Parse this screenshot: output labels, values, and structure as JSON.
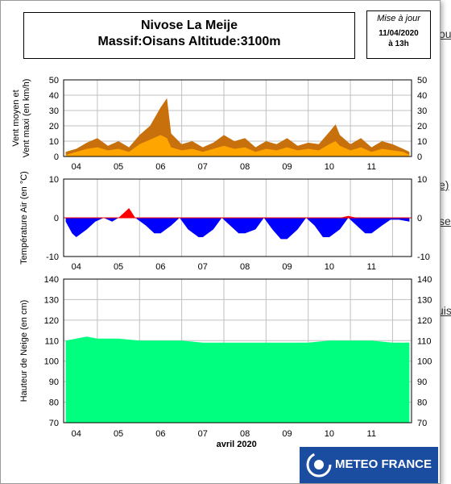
{
  "background_page": {
    "top_snippet": "... ... ...",
    "link_fragments": [
      "ou",
      "e)",
      "se",
      "uis"
    ]
  },
  "header": {
    "title_line1": "Nivose La Meije",
    "title_line2": "Massif:Oisans Altitude:3100m",
    "update_label": "Mise à jour",
    "update_date": "11/04/2020",
    "update_time": "à 13h"
  },
  "logo": {
    "text": "METEO FRANCE",
    "icon": "meteo-france-logo-icon"
  },
  "colors": {
    "wind_max": "#c8700c",
    "wind_mean": "#ffa500",
    "temp_above": "#ff0000",
    "temp_below": "#0000ff",
    "snow": "#00ff7f",
    "logo_bg": "#1a4ca0"
  },
  "chart_data": [
    {
      "type": "area",
      "ylabel": "Vent moyen et Vent maxi (en km/h)",
      "ylim": [
        0,
        50
      ],
      "yticks": [
        0,
        10,
        20,
        30,
        40,
        50
      ],
      "xticks": [
        "04",
        "05",
        "06",
        "07",
        "08",
        "09",
        "10",
        "11"
      ],
      "grid": true,
      "x_days": [
        3.25,
        3.5,
        3.75,
        4.0,
        4.25,
        4.5,
        4.75,
        5.0,
        5.25,
        5.5,
        5.65,
        5.75,
        6.0,
        6.25,
        6.5,
        6.75,
        7.0,
        7.25,
        7.5,
        7.75,
        8.0,
        8.25,
        8.5,
        8.75,
        9.0,
        9.25,
        9.5,
        9.65,
        9.75,
        10.0,
        10.25,
        10.5,
        10.75,
        11.0,
        11.25,
        11.4
      ],
      "series": [
        {
          "name": "Vent maxi",
          "values": [
            3,
            5,
            9,
            12,
            7,
            10,
            6,
            14,
            20,
            32,
            38,
            15,
            8,
            10,
            6,
            9,
            14,
            10,
            12,
            6,
            10,
            8,
            12,
            7,
            9,
            8,
            16,
            21,
            14,
            8,
            12,
            6,
            10,
            8,
            5,
            3
          ]
        },
        {
          "name": "Vent moyen",
          "values": [
            1,
            3,
            5,
            6,
            4,
            5,
            3,
            8,
            11,
            14,
            12,
            6,
            4,
            5,
            3,
            5,
            7,
            5,
            6,
            3,
            5,
            4,
            6,
            4,
            5,
            4,
            8,
            10,
            7,
            4,
            6,
            3,
            5,
            4,
            3,
            1
          ]
        }
      ]
    },
    {
      "type": "area",
      "ylabel": "Température Air (en °C)",
      "ylim": [
        -10,
        10
      ],
      "yticks": [
        -10,
        0,
        10
      ],
      "xticks": [
        "04",
        "05",
        "06",
        "07",
        "08",
        "09",
        "10",
        "11"
      ],
      "grid": true,
      "x_days": [
        3.25,
        3.4,
        3.5,
        3.75,
        3.95,
        4.15,
        4.35,
        4.5,
        4.75,
        4.9,
        5.15,
        5.35,
        5.5,
        5.75,
        5.95,
        6.15,
        6.4,
        6.5,
        6.75,
        6.95,
        7.15,
        7.35,
        7.5,
        7.75,
        7.95,
        8.15,
        8.35,
        8.5,
        8.75,
        8.95,
        9.15,
        9.35,
        9.5,
        9.75,
        9.95,
        10.15,
        10.35,
        10.5,
        10.75,
        10.95,
        11.15,
        11.4
      ],
      "values": [
        -1,
        -4,
        -5,
        -3,
        -1,
        0,
        -1,
        0,
        2.5,
        0,
        -2,
        -4,
        -4,
        -2,
        0,
        -3,
        -5,
        -5,
        -3,
        0,
        -2,
        -4,
        -4,
        -3,
        0,
        -3,
        -5.5,
        -5.5,
        -3,
        0,
        -2,
        -5,
        -5,
        -3,
        0.5,
        -2,
        -4,
        -4,
        -2,
        -0.5,
        -0.5,
        -1
      ]
    },
    {
      "type": "area",
      "xlabel": "avril 2020",
      "ylabel": "Hauteur de Neige (en cm)",
      "ylim": [
        70,
        140
      ],
      "yticks": [
        70,
        80,
        90,
        100,
        110,
        120,
        130,
        140
      ],
      "xticks": [
        "04",
        "05",
        "06",
        "07",
        "08",
        "09",
        "10",
        "11"
      ],
      "grid": true,
      "x_days": [
        3.25,
        3.5,
        3.75,
        4.0,
        4.5,
        5.0,
        5.5,
        6.0,
        6.5,
        7.0,
        7.5,
        8.0,
        8.5,
        9.0,
        9.5,
        10.0,
        10.5,
        11.0,
        11.4
      ],
      "values": [
        110,
        111,
        112,
        111,
        111,
        110,
        110,
        110,
        109,
        109,
        109,
        109,
        109,
        109,
        110,
        110,
        110,
        109,
        109
      ]
    }
  ]
}
